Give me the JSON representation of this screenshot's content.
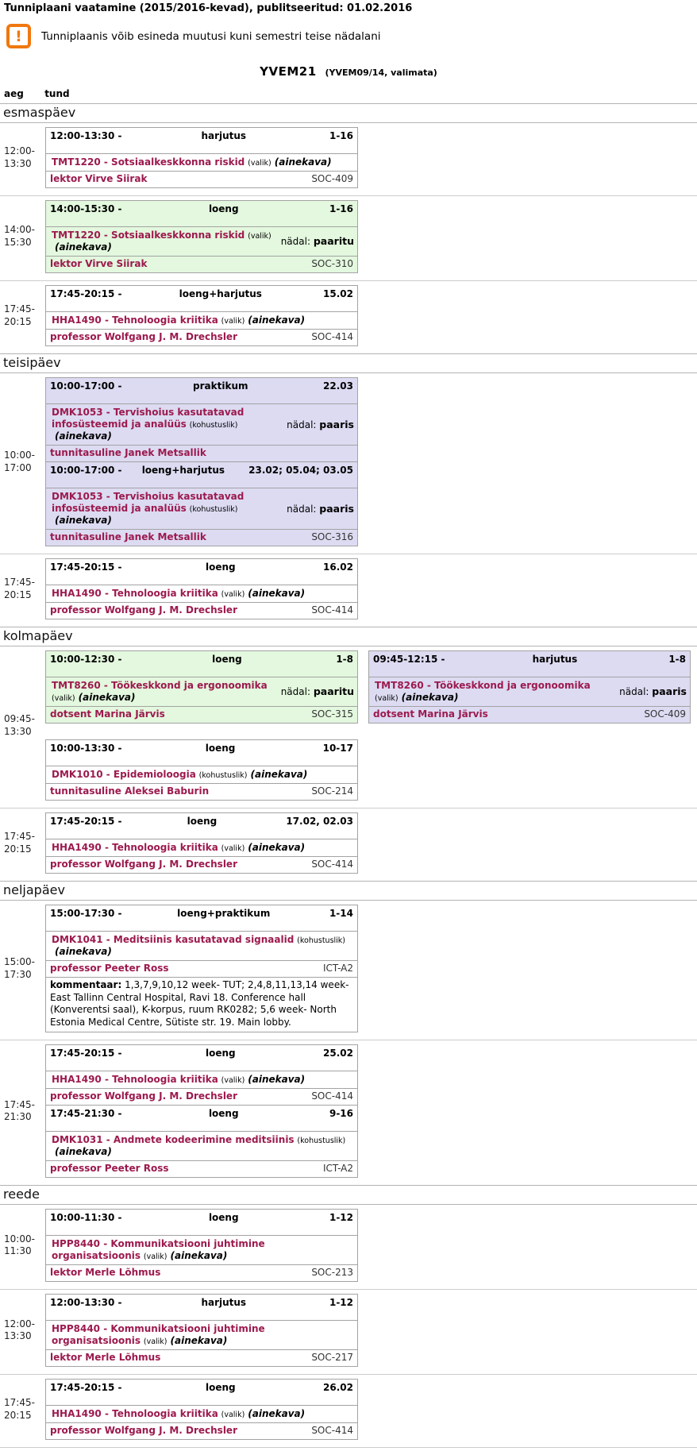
{
  "page": {
    "title": "Tunniplaani vaatamine (2015/2016-kevad), publitseeritud: 01.02.2016",
    "warning_icon_glyph": "!",
    "warning": "Tunniplaanis võib esineda muutusi kuni semestri teise nädalani",
    "group": "YVEM21",
    "group_note": "(YVEM09/14, valimata)",
    "time_column_label": "aeg",
    "lessons_column_label": "tund",
    "week_label": "nädal:",
    "comment_label": "kommentaar:"
  },
  "colors": {
    "accent_maroon": "#9c1a4e",
    "green_card_bg": "#e3f8de",
    "purple_card_bg": "#dcdbf2",
    "warning_orange": "#f0780f",
    "card_border": "#a3a3a3"
  },
  "days": [
    {
      "name": "esmaspäev",
      "slots": [
        {
          "time_start": "12:00",
          "time_end": "13:30",
          "left": [
            {
              "bg": "white",
              "time_range": "12:00-13:30",
              "kind": "harjutus",
              "weeks": "1-16",
              "course": "TMT1220 - Sotsiaalkeskkonna riskid",
              "enrollment": "(valik)",
              "ainekava": "(ainekava)",
              "week_parity": null,
              "lecturer": "lektor Virve Siirak",
              "room": "SOC-409"
            }
          ],
          "right": []
        },
        {
          "time_start": "14:00",
          "time_end": "15:30",
          "left": [
            {
              "bg": "green",
              "time_range": "14:00-15:30",
              "kind": "loeng",
              "weeks": "1-16",
              "course": "TMT1220 - Sotsiaalkeskkonna riskid",
              "enrollment": "(valik)",
              "ainekava": "(ainekava)",
              "week_parity": "paaritu",
              "lecturer": "lektor Virve Siirak",
              "room": "SOC-310"
            }
          ],
          "right": []
        },
        {
          "time_start": "17:45",
          "time_end": "20:15",
          "left": [
            {
              "bg": "white",
              "time_range": "17:45-20:15",
              "kind": "loeng+harjutus",
              "weeks": "15.02",
              "course": "HHA1490 - Tehnoloogia kriitika",
              "enrollment": "(valik)",
              "ainekava": "(ainekava)",
              "week_parity": null,
              "lecturer": "professor Wolfgang J. M. Drechsler",
              "room": "SOC-414"
            }
          ],
          "right": []
        }
      ]
    },
    {
      "name": "teisipäev",
      "slots": [
        {
          "time_start": "10:00",
          "time_end": "17:00",
          "left": [
            {
              "bg": "purple",
              "time_range": "10:00-17:00",
              "kind": "praktikum",
              "weeks": "22.03",
              "course": "DMK1053 - Tervishoius kasutatavad infosüsteemid ja analüüs",
              "enrollment": "(kohustuslik)",
              "ainekava": "(ainekava)",
              "week_parity": "paaris",
              "lecturer": "tunnitasuline Janek Metsallik",
              "room": ""
            },
            {
              "bg": "purple",
              "time_range": "10:00-17:00",
              "kind": "loeng+harjutus",
              "weeks": "23.02; 05.04; 03.05",
              "course": "DMK1053 - Tervishoius kasutatavad infosüsteemid ja analüüs",
              "enrollment": "(kohustuslik)",
              "ainekava": "(ainekava)",
              "week_parity": "paaris",
              "lecturer": "tunnitasuline Janek Metsallik",
              "room": "SOC-316"
            }
          ],
          "right": []
        },
        {
          "time_start": "17:45",
          "time_end": "20:15",
          "left": [
            {
              "bg": "white",
              "time_range": "17:45-20:15",
              "kind": "loeng",
              "weeks": "16.02",
              "course": "HHA1490 - Tehnoloogia kriitika",
              "enrollment": "(valik)",
              "ainekava": "(ainekava)",
              "week_parity": null,
              "lecturer": "professor Wolfgang J. M. Drechsler",
              "room": "SOC-414"
            }
          ],
          "right": []
        }
      ]
    },
    {
      "name": "kolmapäev",
      "slots": [
        {
          "time_start": "09:45",
          "time_end": "13:30",
          "left": [
            {
              "bg": "green",
              "time_range": "10:00-12:30",
              "kind": "loeng",
              "weeks": "1-8",
              "course": "TMT8260 - Töökeskkond ja ergonoomika",
              "enrollment": "(valik)",
              "ainekava": "(ainekava)",
              "week_parity": "paaritu",
              "lecturer": "dotsent Marina Järvis",
              "room": "SOC-315"
            },
            {
              "bg": "white",
              "gap_before": true,
              "time_range": "10:00-13:30",
              "kind": "loeng",
              "weeks": "10-17",
              "course": "DMK1010 - Epidemioloogia",
              "enrollment": "(kohustuslik)",
              "ainekava": "(ainekava)",
              "week_parity": null,
              "lecturer": "tunnitasuline Aleksei Baburin",
              "room": "SOC-214"
            }
          ],
          "right": [
            {
              "bg": "purple",
              "time_range": "09:45-12:15",
              "kind": "harjutus",
              "weeks": "1-8",
              "course": "TMT8260 - Töökeskkond ja ergonoomika",
              "enrollment": "(valik)",
              "ainekava": "(ainekava)",
              "week_parity": "paaris",
              "lecturer": "dotsent Marina Järvis",
              "room": "SOC-409"
            }
          ]
        },
        {
          "time_start": "17:45",
          "time_end": "20:15",
          "left": [
            {
              "bg": "white",
              "time_range": "17:45-20:15",
              "kind": "loeng",
              "weeks": "17.02, 02.03",
              "course": "HHA1490 - Tehnoloogia kriitika",
              "enrollment": "(valik)",
              "ainekava": "(ainekava)",
              "week_parity": null,
              "lecturer": "professor Wolfgang J. M. Drechsler",
              "room": "SOC-414"
            }
          ],
          "right": []
        }
      ]
    },
    {
      "name": "neljapäev",
      "slots": [
        {
          "time_start": "15:00",
          "time_end": "17:30",
          "left": [
            {
              "bg": "white",
              "time_range": "15:00-17:30",
              "kind": "loeng+praktikum",
              "weeks": "1-14",
              "course": "DMK1041 - Meditsiinis kasutatavad signaalid",
              "enrollment": "(kohustuslik)",
              "ainekava": "(ainekava)",
              "week_parity": null,
              "lecturer": "professor Peeter Ross",
              "room": "ICT-A2",
              "comment": "1,3,7,9,10,12 week- TUT; 2,4,8,11,13,14 week- East Tallinn Central Hospital, Ravi 18. Conference hall (Konverentsi saal), K-korpus, ruum RK0282; 5,6 week- North Estonia Medical Centre, Sütiste str. 19. Main lobby."
            }
          ],
          "right": []
        },
        {
          "time_start": "17:45",
          "time_end": "21:30",
          "left": [
            {
              "bg": "white",
              "time_range": "17:45-20:15",
              "kind": "loeng",
              "weeks": "25.02",
              "course": "HHA1490 - Tehnoloogia kriitika",
              "enrollment": "(valik)",
              "ainekava": "(ainekava)",
              "week_parity": null,
              "lecturer": "professor Wolfgang J. M. Drechsler",
              "room": "SOC-414"
            },
            {
              "bg": "white",
              "time_range": "17:45-21:30",
              "kind": "loeng",
              "weeks": "9-16",
              "course": "DMK1031 - Andmete kodeerimine meditsiinis",
              "enrollment": "(kohustuslik)",
              "ainekava": "(ainekava)",
              "week_parity": null,
              "lecturer": "professor Peeter Ross",
              "room": "ICT-A2"
            }
          ],
          "right": []
        }
      ]
    },
    {
      "name": "reede",
      "slots": [
        {
          "time_start": "10:00",
          "time_end": "11:30",
          "left": [
            {
              "bg": "white",
              "time_range": "10:00-11:30",
              "kind": "loeng",
              "weeks": "1-12",
              "course": "HPP8440 - Kommunikatsiooni juhtimine organisatsioonis",
              "enrollment": "(valik)",
              "ainekava": "(ainekava)",
              "week_parity": null,
              "lecturer": "lektor Merle Lõhmus",
              "room": "SOC-213"
            }
          ],
          "right": []
        },
        {
          "time_start": "12:00",
          "time_end": "13:30",
          "left": [
            {
              "bg": "white",
              "time_range": "12:00-13:30",
              "kind": "harjutus",
              "weeks": "1-12",
              "course": "HPP8440 - Kommunikatsiooni juhtimine organisatsioonis",
              "enrollment": "(valik)",
              "ainekava": "(ainekava)",
              "week_parity": null,
              "lecturer": "lektor Merle Lõhmus",
              "room": "SOC-217"
            }
          ],
          "right": []
        },
        {
          "time_start": "17:45",
          "time_end": "20:15",
          "left": [
            {
              "bg": "white",
              "time_range": "17:45-20:15",
              "kind": "loeng",
              "weeks": "26.02",
              "course": "HHA1490 - Tehnoloogia kriitika",
              "enrollment": "(valik)",
              "ainekava": "(ainekava)",
              "week_parity": null,
              "lecturer": "professor Wolfgang J. M. Drechsler",
              "room": "SOC-414"
            }
          ],
          "right": []
        }
      ]
    }
  ]
}
